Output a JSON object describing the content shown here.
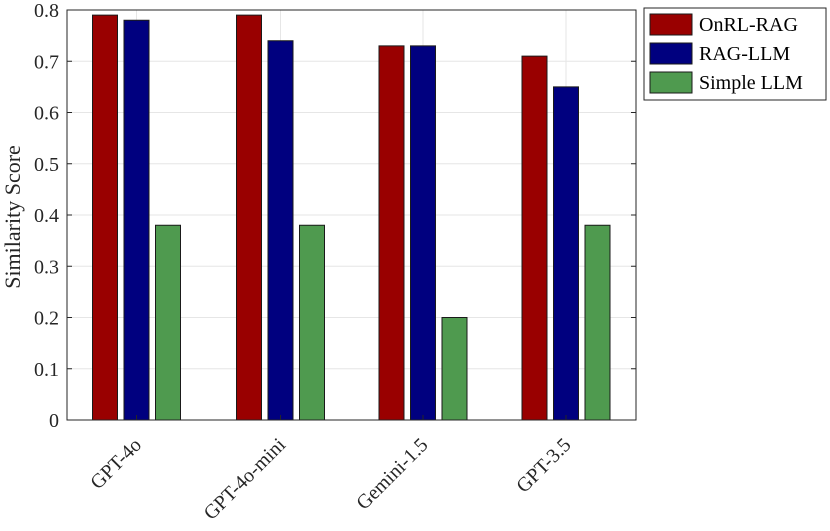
{
  "chart_data": {
    "type": "bar",
    "categories": [
      "GPT-4o",
      "GPT-4o-mini",
      "Gemini-1.5",
      "GPT-3.5"
    ],
    "series": [
      {
        "name": "OnRL-RAG",
        "values": [
          0.79,
          0.79,
          0.73,
          0.71
        ],
        "color": "#990000"
      },
      {
        "name": "RAG-LLM",
        "values": [
          0.78,
          0.74,
          0.73,
          0.65
        ],
        "color": "#00007f"
      },
      {
        "name": "Simple LLM",
        "values": [
          0.38,
          0.38,
          0.2,
          0.38
        ],
        "color": "#4f9a4f"
      }
    ],
    "ylabel": "Similarity Score",
    "xlabel": "",
    "ylim": [
      0,
      0.8
    ],
    "yticks": [
      "0",
      "0.1",
      "0.2",
      "0.3",
      "0.4",
      "0.5",
      "0.6",
      "0.7",
      "0.8"
    ],
    "grid": true,
    "legend_position": "outside-top-right"
  }
}
